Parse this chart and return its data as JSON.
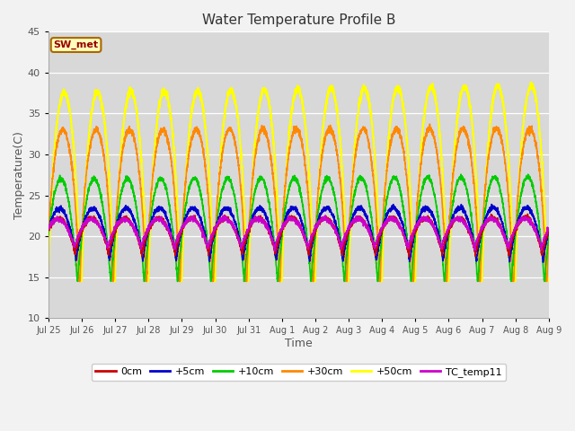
{
  "title": "Water Temperature Profile B",
  "xlabel": "Time",
  "ylabel": "Temperature(C)",
  "ylim": [
    10,
    45
  ],
  "y_ticks": [
    10,
    15,
    20,
    25,
    30,
    35,
    40,
    45
  ],
  "annotation": "SW_met",
  "tick_labels": [
    "Jul 25",
    "Jul 26",
    "Jul 27",
    "Jul 28",
    "Jul 29",
    "Jul 30",
    "Jul 31",
    "Aug 1",
    "Aug 2",
    "Aug 3",
    "Aug 4",
    "Aug 5",
    "Aug 6",
    "Aug 7",
    "Aug 8",
    "Aug 9"
  ],
  "series_order": [
    "0cm",
    "+5cm",
    "+10cm",
    "+30cm",
    "+50cm",
    "TC_temp11"
  ],
  "series": {
    "0cm": {
      "color": "#cc0000",
      "lw": 1.2,
      "base": 20.0,
      "amp": 2.2,
      "amp2": 1.5
    },
    "+5cm": {
      "color": "#0000cc",
      "lw": 1.2,
      "base": 20.2,
      "amp": 3.2,
      "amp2": 2.0
    },
    "+10cm": {
      "color": "#00cc00",
      "lw": 1.2,
      "base": 20.5,
      "amp": 6.5,
      "amp2": 3.5
    },
    "+30cm": {
      "color": "#ff8800",
      "lw": 1.2,
      "base": 21.0,
      "amp": 12.0,
      "amp2": 7.0
    },
    "+50cm": {
      "color": "#ffff00",
      "lw": 1.5,
      "base": 21.5,
      "amp": 16.0,
      "amp2": 9.0
    },
    "TC_temp11": {
      "color": "#cc00cc",
      "lw": 1.2,
      "base": 20.3,
      "amp": 1.8,
      "amp2": 1.2
    }
  },
  "n_days": 15,
  "pts_per_day": 240,
  "background_color": "#d8d8d8",
  "fig_bg": "#f2f2f2",
  "grid_color": "#ffffff",
  "spine_color": "#aaaaaa"
}
